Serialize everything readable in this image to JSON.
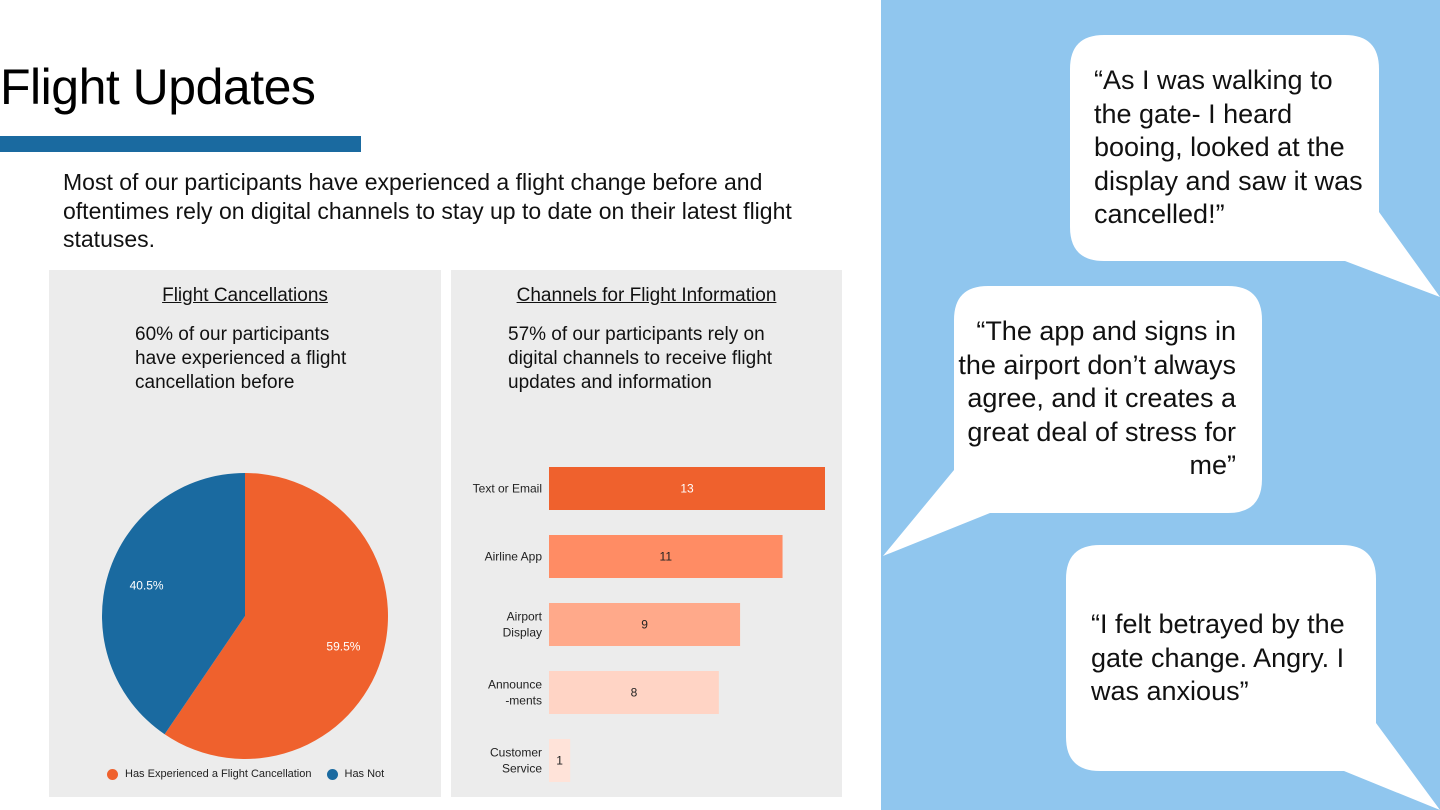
{
  "slide": {
    "title": "Flight Updates",
    "intro": "Most of our participants have experienced a flight change before and oftentimes rely on digital channels to stay up to date on their latest flight statuses."
  },
  "left_panel": {
    "title": "Flight Cancellations",
    "description": "60% of our participants have experienced a flight cancellation before"
  },
  "right_panel": {
    "title": "Channels for Flight Information",
    "description": "57% of our participants rely on digital channels to receive flight updates and information"
  },
  "quotes": {
    "q1": "“As I was walking to the gate- I heard booing, looked at the display and saw it was cancelled!”",
    "q2": "“The app and signs in the airport don’t always agree, and it creates a great deal of stress for me”",
    "q3": "“I felt betrayed by the gate change. Angry. I was anxious”"
  },
  "colors": {
    "accent_blue": "#1a6aa0",
    "side_background": "#90c6ee",
    "panel_background": "#ececec"
  },
  "chart_data": [
    {
      "type": "pie",
      "title": "Flight Cancellations",
      "categories": [
        "Has Experienced a Flight Cancellation",
        "Has Not"
      ],
      "values": [
        59.5,
        40.5
      ],
      "labels": [
        "59.5%",
        "40.5%"
      ],
      "colors": [
        "#ef612d",
        "#1a6aa0"
      ],
      "legend": "bottom"
    },
    {
      "type": "bar",
      "orientation": "horizontal",
      "title": "Channels for Flight Information",
      "categories": [
        "Text or Email",
        "Airline App",
        "Airport Display",
        "Announce-ments",
        "Customer Service"
      ],
      "category_lines": [
        [
          "Text or Email"
        ],
        [
          "Airline App"
        ],
        [
          "Airport",
          "Display"
        ],
        [
          "Announce",
          "-ments"
        ],
        [
          "Customer",
          "Service"
        ]
      ],
      "values": [
        13,
        11,
        9,
        8,
        1
      ],
      "colors": [
        "#ef612d",
        "#ff8c64",
        "#ffa98a",
        "#ffd4c5",
        "#ffe3d9"
      ],
      "label_colors": [
        "#ffffff",
        "#222222",
        "#222222",
        "#222222",
        "#222222"
      ],
      "xlim": [
        0,
        13
      ],
      "grid": false
    }
  ]
}
